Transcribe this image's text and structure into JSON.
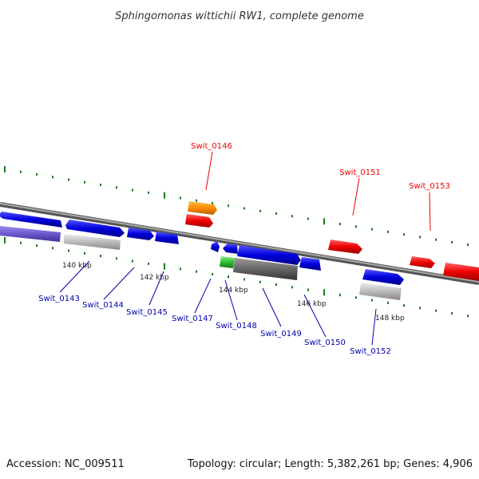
{
  "title": "Sphingomonas wittichii RW1, complete genome",
  "footer": {
    "accession": "Accession: NC_009511",
    "summary": "Topology: circular; Length: 5,382,261 bp; Genes: 4,906"
  },
  "scale_labels": [
    "140 kbp",
    "142 kbp",
    "144 kbp",
    "146 kbp",
    "148 kbp"
  ],
  "highlight_genes": [
    "Swit_0146",
    "Swit_0151",
    "Swit_0153"
  ],
  "other_genes": [
    "Swit_0143",
    "Swit_0144",
    "Swit_0145",
    "Swit_0147",
    "Swit_0148",
    "Swit_0149",
    "Swit_0150",
    "Swit_0152"
  ],
  "colors": {
    "highlight_gene": "#ee0000",
    "other_gene_label": "#0000aa",
    "cds_forward": "#0000dd",
    "cds_other": "#ff8c00",
    "rna_gene": "#33bb33",
    "pseudo_gene": "#666666",
    "bar_purple": "#6a5acd",
    "bar_gray": "#bbbbbb",
    "backbone": "#888888",
    "ticks": "#1a7a1a"
  }
}
